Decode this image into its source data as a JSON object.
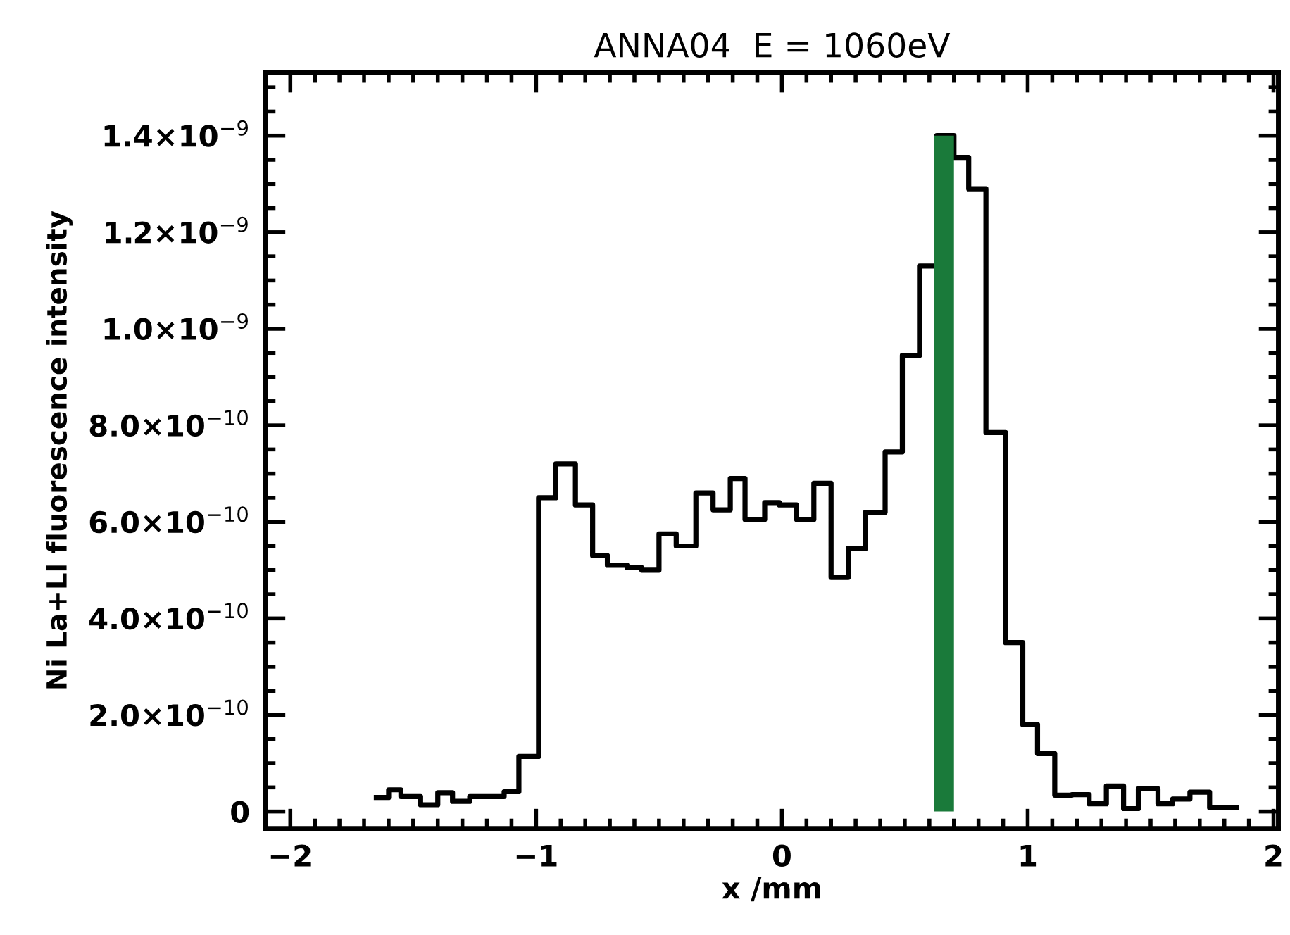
{
  "chart_data": {
    "type": "step",
    "title": "ANNA04  E = 1060eV",
    "xlabel": "x /mm",
    "ylabel": "Ni La+Ll fluorescence intensity",
    "series": [
      {
        "color": "#000000",
        "x": [
          -1.65,
          -1.6,
          -1.55,
          -1.47,
          -1.4,
          -1.34,
          -1.27,
          -1.2,
          -1.13,
          -1.07,
          -0.99,
          -0.92,
          -0.84,
          -0.77,
          -0.71,
          -0.63,
          -0.57,
          -0.5,
          -0.43,
          -0.35,
          -0.28,
          -0.21,
          -0.15,
          -0.07,
          -0.01,
          0.06,
          0.13,
          0.2,
          0.27,
          0.34,
          0.42,
          0.49,
          0.56,
          0.63,
          0.7,
          0.76,
          0.83,
          0.91,
          0.98,
          1.04,
          1.11,
          1.18,
          1.25,
          1.32,
          1.39,
          1.45,
          1.53,
          1.59,
          1.66,
          1.74,
          1.85
        ],
        "values": [
          2.9e-11,
          4.5e-11,
          3.1e-11,
          1.4e-11,
          3.9e-11,
          2.1e-11,
          3.1e-11,
          3.1e-11,
          4.1e-11,
          1.14e-10,
          6.5e-10,
          7.2e-10,
          6.35e-10,
          5.3e-10,
          5.1e-10,
          5.05e-10,
          5e-10,
          5.75e-10,
          5.5e-10,
          6.6e-10,
          6.25e-10,
          6.9e-10,
          6.05e-10,
          6.4e-10,
          6.35e-10,
          6.05e-10,
          6.8e-10,
          4.85e-10,
          5.45e-10,
          6.2e-10,
          7.45e-10,
          9.45e-10,
          1.13e-09,
          1.4e-09,
          1.355e-09,
          1.29e-09,
          7.85e-10,
          3.5e-10,
          1.8e-10,
          1.2e-10,
          3.4e-11,
          3.5e-11,
          1.6e-11,
          5.3e-11,
          6e-12,
          4.7e-11,
          1.6e-11,
          2.6e-11,
          4e-11,
          8e-12,
          8e-12
        ]
      }
    ],
    "bands": [
      {
        "axis": "x",
        "from": 0.62,
        "to": 0.7,
        "color": "#1a7a3a"
      }
    ],
    "xlim": [
      -2.1,
      2.02
    ],
    "xticks": [
      {
        "value": -2,
        "label": "−2"
      },
      {
        "value": -1,
        "label": "−1"
      },
      0,
      1,
      2
    ],
    "ylim": [
      -3.5e-11,
      1.53e-09
    ],
    "yticks": [
      {
        "value": 0,
        "label": "0"
      },
      {
        "value": 2e-10,
        "label": "2.0×10$^{−10}$"
      },
      {
        "value": 4e-10,
        "label": "4.0×10$^{−10}$"
      },
      {
        "value": 6e-10,
        "label": "6.0×10$^{−10}$"
      },
      {
        "value": 8e-10,
        "label": "8.0×10$^{−10}$"
      },
      {
        "value": 1e-09,
        "label": "1.0×10$^{−9}$"
      },
      {
        "value": 1.2e-09,
        "label": "1.2×10$^{−9}$"
      },
      {
        "value": 1.4e-09,
        "label": "1.4×10$^{−9}$"
      }
    ],
    "grid": false,
    "legend": false
  }
}
